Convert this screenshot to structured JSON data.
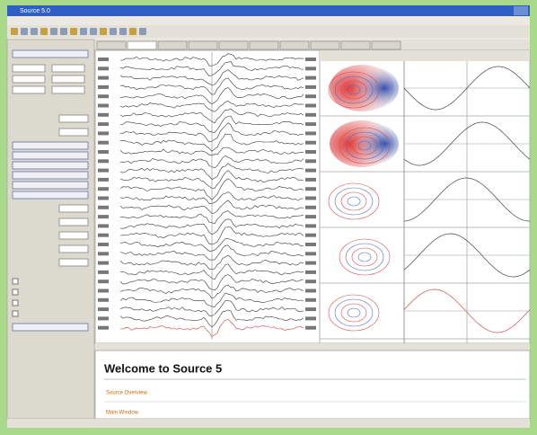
{
  "window": {
    "title": "Source 5.0"
  },
  "welcome": {
    "heading": "Welcome to Source 5",
    "links": [
      "Source Overview",
      "Main Window"
    ]
  }
}
